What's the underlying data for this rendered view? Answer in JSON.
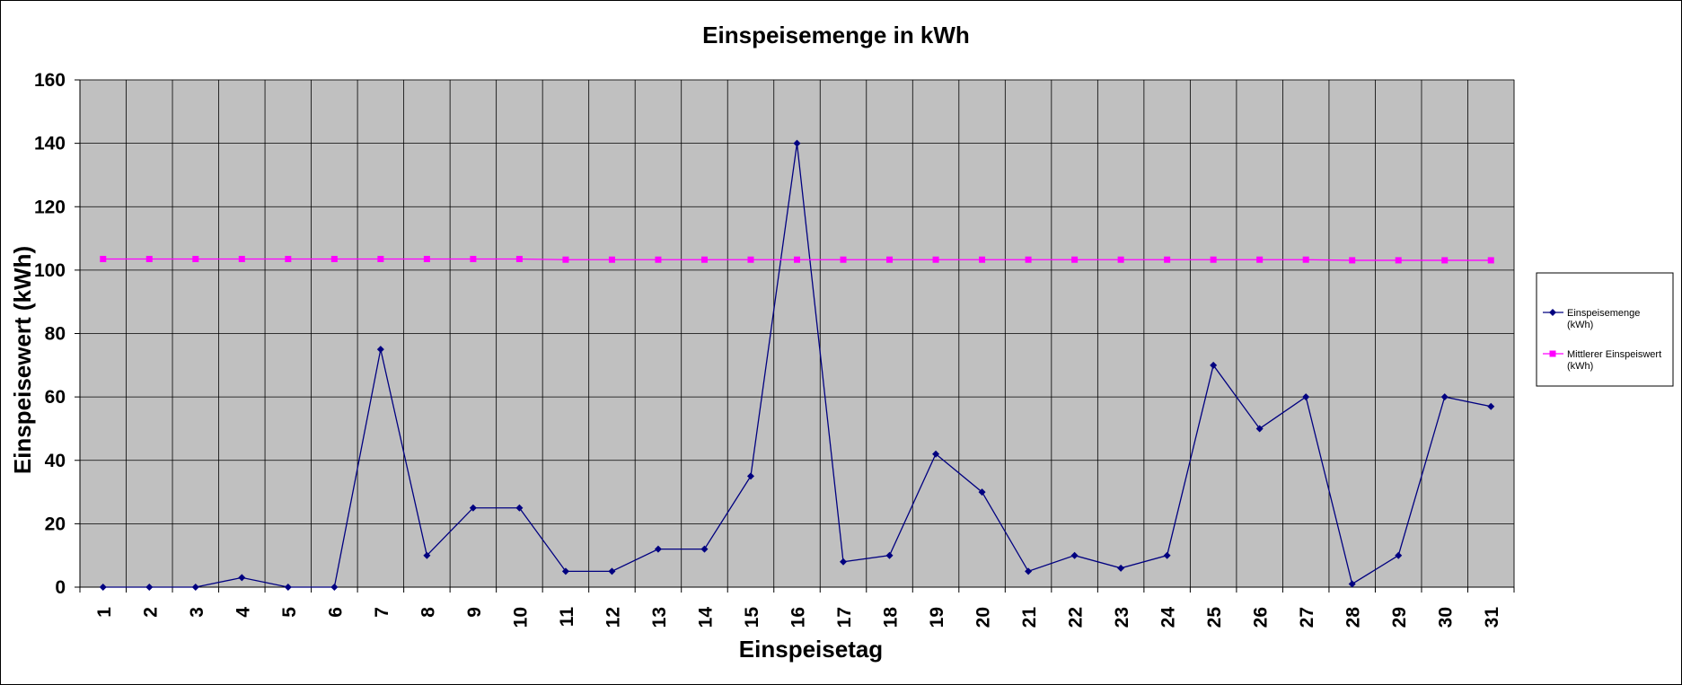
{
  "chart_data": {
    "type": "line",
    "title": "Einspeisemenge in kWh",
    "xlabel": "Einspeisetag",
    "ylabel": "Einspeisewert  (kWh)",
    "categories": [
      "1",
      "2",
      "3",
      "4",
      "5",
      "6",
      "7",
      "8",
      "9",
      "10",
      "11",
      "12",
      "13",
      "14",
      "15",
      "16",
      "17",
      "18",
      "19",
      "20",
      "21",
      "22",
      "23",
      "24",
      "25",
      "26",
      "27",
      "28",
      "29",
      "30",
      "31"
    ],
    "ylim": [
      0,
      160
    ],
    "yticks": [
      "0",
      "20",
      "40",
      "60",
      "80",
      "100",
      "120",
      "140",
      "160"
    ],
    "grid": true,
    "legend_position": "right",
    "series": [
      {
        "name": "Einspeisemenge (kWh)",
        "legend_lines": [
          "Einspeisemenge",
          "(kWh)"
        ],
        "color": "#000080",
        "marker": "diamond",
        "values": [
          0,
          0,
          0,
          3,
          0,
          0,
          75,
          10,
          25,
          25,
          5,
          5,
          12,
          12,
          35,
          140,
          8,
          10,
          42,
          30,
          5,
          10,
          6,
          10,
          70,
          50,
          60,
          1,
          10,
          60,
          57
        ]
      },
      {
        "name": "Mittlerer Einspeiswert (kWh)",
        "legend_lines": [
          "Mittlerer Einspeiswert",
          "(kWh)"
        ],
        "color": "#FF00FF",
        "marker": "square",
        "values": [
          103.5,
          103.5,
          103.5,
          103.5,
          103.5,
          103.5,
          103.5,
          103.5,
          103.5,
          103.5,
          103.3,
          103.3,
          103.3,
          103.3,
          103.3,
          103.3,
          103.3,
          103.3,
          103.3,
          103.3,
          103.3,
          103.3,
          103.3,
          103.3,
          103.3,
          103.3,
          103.3,
          103.1,
          103.1,
          103.1,
          103.1
        ]
      }
    ],
    "plot_background": "#C0C0C0",
    "gridline_color": "#000000"
  }
}
